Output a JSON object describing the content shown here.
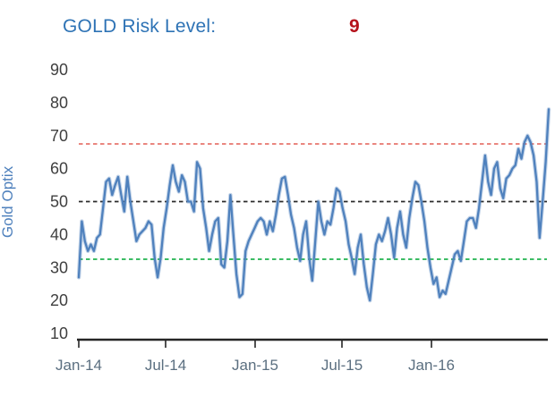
{
  "header": {
    "title": "GOLD Risk Level:",
    "value": "9",
    "title_color": "#2e73b5",
    "value_color": "#b5121b"
  },
  "chart_data": {
    "type": "line",
    "title": "GOLD Risk Level: 9",
    "ylabel": "Gold Optix",
    "ylabel_color": "#4f81bd",
    "x_tick_labels": [
      "Jan-14",
      "Jul-14",
      "Jan-15",
      "Jul-15",
      "Jan-16"
    ],
    "x_range_note": "weekly values, Jan-2014 through Aug-2016",
    "ylim": [
      10,
      90
    ],
    "yticks": [
      90,
      80,
      70,
      60,
      50,
      40,
      30,
      20,
      10
    ],
    "grid": false,
    "legend": false,
    "axis_color": "#262626",
    "ytick_color": "#3f3f3f",
    "xtick_color": "#5b6f80",
    "series": [
      {
        "name": "Gold Optix",
        "color": "#4f81bd",
        "values": [
          27,
          44,
          38,
          35,
          37,
          35,
          39,
          40,
          48,
          56,
          57,
          52,
          55,
          57.5,
          52,
          47,
          57.5,
          50,
          44,
          38,
          40,
          41,
          42,
          44,
          43,
          33,
          27,
          33,
          42,
          48,
          55,
          61,
          56,
          53,
          58,
          56,
          50,
          50,
          47,
          62,
          60,
          48,
          42,
          35,
          40,
          44,
          45,
          31,
          30,
          38,
          52,
          40,
          28,
          21,
          22,
          35,
          38,
          40,
          42,
          44,
          45,
          44,
          40,
          44,
          41,
          46,
          52,
          57,
          57.5,
          52,
          46,
          42,
          36,
          32,
          40,
          44,
          33,
          26,
          38,
          50,
          44,
          40,
          44,
          43,
          48,
          54,
          53,
          48,
          44,
          37,
          33,
          28,
          36,
          40,
          31,
          24,
          20,
          28,
          37,
          40,
          38,
          41,
          45,
          40,
          33,
          42,
          47,
          40,
          36,
          45,
          51,
          56,
          55,
          50,
          44,
          36,
          30,
          25,
          27,
          21,
          23,
          22,
          26,
          30,
          34,
          35,
          32,
          38,
          44,
          45,
          45,
          42,
          48,
          56,
          64,
          56,
          52,
          60,
          62,
          54,
          51,
          57,
          58,
          60,
          61,
          66,
          63,
          68,
          70,
          68,
          64,
          56,
          39,
          50,
          62,
          78
        ]
      }
    ],
    "reference_lines": [
      {
        "label": "high-risk-threshold",
        "value": 67.5,
        "color": "#e8756d",
        "style": "dashed"
      },
      {
        "label": "neutral-level",
        "value": 50,
        "color": "#2b2b2b",
        "style": "dashed"
      },
      {
        "label": "low-risk-threshold",
        "value": 32.5,
        "color": "#21b24f",
        "style": "dashed"
      }
    ]
  }
}
